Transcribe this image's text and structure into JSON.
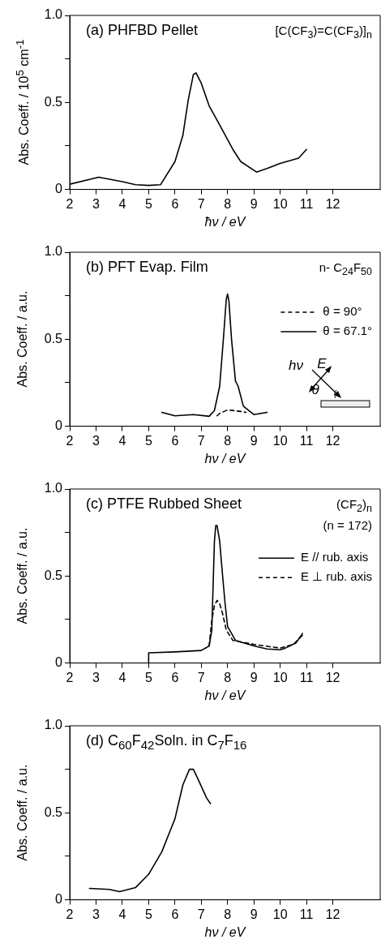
{
  "chart_data": [
    {
      "type": "line",
      "title": "(a) PHFBD  Pellet",
      "annotations": [
        "[C(CF$_{3}$)=C(CF$_{3}$)]$_{n}$"
      ],
      "xlabel": "ħν / eV",
      "ylabel": "Abs. Coeff.  / 10$^{5}$ cm$^{-1}$",
      "xlim": [
        2,
        13.8
      ],
      "xticks": [
        2,
        3,
        4,
        5,
        6,
        7,
        8,
        9,
        10,
        11,
        12
      ],
      "ylim": [
        0,
        1
      ],
      "yticks": [
        {
          "value": 0,
          "label": "0"
        },
        {
          "value": 0.25,
          "label": null
        },
        {
          "value": 0.5,
          "label": "0.5"
        },
        {
          "value": 0.75,
          "label": null
        },
        {
          "value": 1,
          "label": "1.0"
        }
      ],
      "series": [
        {
          "color": "#000000",
          "x": [
            2,
            3.1,
            4,
            4.5,
            5,
            5.45,
            6,
            6.3,
            6.5,
            6.7,
            6.8,
            7,
            7.3,
            7.7,
            8.2,
            8.5,
            9.1,
            9.5,
            10,
            10.7,
            11
          ],
          "values": [
            0.03,
            0.07,
            0.045,
            0.027,
            0.023,
            0.027,
            0.16,
            0.31,
            0.51,
            0.66,
            0.67,
            0.61,
            0.48,
            0.37,
            0.23,
            0.16,
            0.1,
            0.12,
            0.15,
            0.18,
            0.23
          ]
        }
      ]
    },
    {
      "type": "line",
      "title": "(b) PFT Evap. Film",
      "annotations": [
        "n- C$_{24}$F$_{50}$",
        "hν",
        "E",
        "θ"
      ],
      "xlabel": "hν / eV",
      "ylabel": "Abs. Coeff. / a.u.",
      "xlim": [
        2,
        13.8
      ],
      "xticks": [
        2,
        3,
        4,
        5,
        6,
        7,
        8,
        9,
        10,
        11,
        12
      ],
      "ylim": [
        0,
        1
      ],
      "yticks": [
        {
          "value": 0,
          "label": "0"
        },
        {
          "value": 0.25,
          "label": null
        },
        {
          "value": 0.5,
          "label": "0.5"
        },
        {
          "value": 0.75,
          "label": null
        },
        {
          "value": 1,
          "label": "1.0"
        }
      ],
      "legend": "top right",
      "series": [
        {
          "name": "θ = 90°",
          "color": "#000000",
          "line_style": "dashed",
          "x": [
            7.6,
            7.7,
            8,
            8.5,
            8.7
          ],
          "values": [
            0.06,
            0.074,
            0.094,
            0.085,
            0.08
          ]
        },
        {
          "name": "θ = 67.1°",
          "color": "#000000",
          "line_style": "solid",
          "x": [
            5.5,
            6,
            6.7,
            7.3,
            7.5,
            7.7,
            7.85,
            7.95,
            8,
            8.05,
            8.15,
            8.3,
            8.4,
            8.6,
            9,
            9.5
          ],
          "values": [
            0.08,
            0.06,
            0.067,
            0.057,
            0.09,
            0.23,
            0.52,
            0.73,
            0.76,
            0.72,
            0.5,
            0.26,
            0.23,
            0.115,
            0.067,
            0.08
          ]
        }
      ]
    },
    {
      "type": "line",
      "title": "(c) PTFE Rubbed Sheet",
      "annotations": [
        "(CF$_{2}$)$_{n}$",
        "(n = 172)"
      ],
      "xlabel": "hν / eV",
      "ylabel": "Abs. Coeff. / a.u.",
      "xlim": [
        2,
        13.8
      ],
      "xticks": [
        2,
        3,
        4,
        5,
        6,
        7,
        8,
        9,
        10,
        11,
        12
      ],
      "ylim": [
        0,
        1
      ],
      "yticks": [
        {
          "value": 0,
          "label": "0"
        },
        {
          "value": 0.25,
          "label": null
        },
        {
          "value": 0.5,
          "label": "0.5"
        },
        {
          "value": 0.75,
          "label": null
        },
        {
          "value": 1,
          "label": "1.0"
        }
      ],
      "legend": "right",
      "series": [
        {
          "name": "E // rub. axis",
          "color": "#000000",
          "line_style": "solid",
          "x": [
            5,
            5,
            6,
            7,
            7.3,
            7.4,
            7.5,
            7.55,
            7.6,
            7.7,
            7.8,
            7.9,
            8,
            8.3,
            9,
            9.5,
            10,
            10.2,
            10.6,
            10.85
          ],
          "values": [
            0,
            0.059,
            0.064,
            0.072,
            0.098,
            0.19,
            0.7,
            0.79,
            0.79,
            0.7,
            0.52,
            0.35,
            0.21,
            0.13,
            0.098,
            0.081,
            0.076,
            0.086,
            0.116,
            0.17
          ]
        },
        {
          "name": "E ⊥ rub. axis",
          "color": "#000000",
          "line_style": "dashed",
          "x": [
            7.3,
            7.4,
            7.5,
            7.6,
            7.7,
            7.8,
            7.95,
            8.2,
            9,
            10,
            10.5,
            10.85
          ],
          "values": [
            0.098,
            0.245,
            0.33,
            0.36,
            0.34,
            0.29,
            0.19,
            0.13,
            0.107,
            0.086,
            0.107,
            0.16
          ]
        }
      ]
    },
    {
      "type": "line",
      "title": "(d) C$_{60}$F$_{42}$Soln. in C$_{7}$F$_{16}$",
      "xlabel": "hν / eV",
      "ylabel": "Abs. Coeff. / a.u.",
      "xlim": [
        2,
        13.8
      ],
      "xticks": [
        2,
        3,
        4,
        5,
        6,
        7,
        8,
        9,
        10,
        11,
        12
      ],
      "ylim": [
        0,
        1
      ],
      "yticks": [
        {
          "value": 0,
          "label": "0"
        },
        {
          "value": 0.25,
          "label": null
        },
        {
          "value": 0.5,
          "label": "0.5"
        },
        {
          "value": 0.75,
          "label": null
        },
        {
          "value": 1,
          "label": "1.0"
        }
      ],
      "series": [
        {
          "color": "#000000",
          "x": [
            2.75,
            3.5,
            3.9,
            4.5,
            5,
            5.5,
            6,
            6.3,
            6.55,
            6.7,
            6.9,
            7.2,
            7.35
          ],
          "values": [
            0.066,
            0.06,
            0.047,
            0.07,
            0.147,
            0.276,
            0.466,
            0.66,
            0.75,
            0.75,
            0.686,
            0.586,
            0.553
          ]
        }
      ]
    }
  ]
}
